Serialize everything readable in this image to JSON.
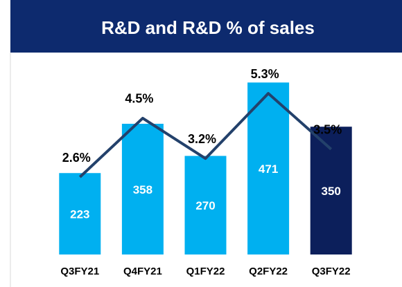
{
  "chart_data": {
    "type": "bar",
    "title": "R&D and R&D % of sales",
    "categories": [
      "Q3FY21",
      "Q4FY21",
      "Q1FY22",
      "Q2FY22",
      "Q3FY22"
    ],
    "values": [
      223,
      358,
      270,
      471,
      350
    ],
    "colors": [
      "#00b0f0",
      "#00b0f0",
      "#00b0f0",
      "#00b0f0",
      "#0c1f5b"
    ],
    "line": {
      "type": "line",
      "values": [
        2.6,
        4.5,
        3.2,
        5.3,
        3.5
      ],
      "value_labels": [
        "2.6%",
        "4.5%",
        "3.2%",
        "5.3%",
        "3.5%"
      ],
      "color": "#23416b"
    }
  }
}
